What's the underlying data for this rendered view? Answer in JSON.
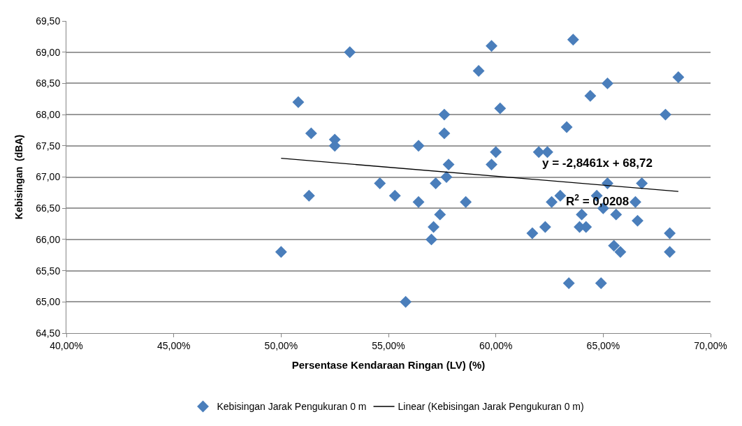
{
  "chart_data": {
    "type": "scatter",
    "xlabel": "Persentase Kendaraan Ringan (LV) (%)",
    "ylabel": "Kebisingan  (dBA)",
    "xlim": [
      0.4,
      0.7
    ],
    "xticks": [
      {
        "value": 0.4,
        "label": "40,00%"
      },
      {
        "value": 0.45,
        "label": "45,00%"
      },
      {
        "value": 0.5,
        "label": "50,00%"
      },
      {
        "value": 0.55,
        "label": "55,00%"
      },
      {
        "value": 0.6,
        "label": "60,00%"
      },
      {
        "value": 0.65,
        "label": "65,00%"
      },
      {
        "value": 0.7,
        "label": "70,00%"
      }
    ],
    "ylim": [
      64.5,
      69.5
    ],
    "yticks": [
      {
        "value": 64.5,
        "label": "64,50"
      },
      {
        "value": 65,
        "label": "65,00"
      },
      {
        "value": 65.5,
        "label": "65,50"
      },
      {
        "value": 66,
        "label": "66,00"
      },
      {
        "value": 66.5,
        "label": "66,50"
      },
      {
        "value": 67,
        "label": "67,00"
      },
      {
        "value": 67.5,
        "label": "67,50"
      },
      {
        "value": 68,
        "label": "68,00"
      },
      {
        "value": 68.5,
        "label": "68,50"
      },
      {
        "value": 69,
        "label": "69,00"
      },
      {
        "value": 69.5,
        "label": "69,50"
      }
    ],
    "grid": "y",
    "legend": "bottom",
    "marker": "diamond",
    "series": [
      {
        "name": "Kebisingan Jarak Pengukuran 0 m",
        "color": "#4a7ebb",
        "x": [
          0.5,
          0.508,
          0.514,
          0.513,
          0.525,
          0.525,
          0.532,
          0.546,
          0.553,
          0.558,
          0.564,
          0.564,
          0.57,
          0.571,
          0.574,
          0.572,
          0.577,
          0.578,
          0.576,
          0.576,
          0.586,
          0.592,
          0.598,
          0.602,
          0.6,
          0.598,
          0.636,
          0.685,
          0.652,
          0.644,
          0.679,
          0.633,
          0.62,
          0.624,
          0.652,
          0.668,
          0.63,
          0.647,
          0.626,
          0.665,
          0.65,
          0.64,
          0.656,
          0.666,
          0.623,
          0.639,
          0.642,
          0.617,
          0.681,
          0.655,
          0.658,
          0.681,
          0.634,
          0.649
        ],
        "values": [
          65.8,
          68.2,
          67.7,
          66.7,
          67.6,
          67.5,
          69.0,
          66.9,
          66.7,
          65.0,
          67.5,
          66.6,
          66.0,
          66.2,
          66.4,
          66.9,
          67.0,
          67.2,
          67.7,
          68.0,
          66.6,
          68.7,
          69.1,
          68.1,
          67.4,
          67.2,
          69.2,
          68.6,
          68.5,
          68.3,
          68.0,
          67.8,
          67.4,
          67.4,
          66.9,
          66.9,
          66.7,
          66.7,
          66.6,
          66.6,
          66.5,
          66.4,
          66.4,
          66.3,
          66.2,
          66.2,
          66.2,
          66.1,
          66.1,
          65.9,
          65.8,
          65.8,
          65.3,
          65.3
        ]
      },
      {
        "name": "Linear (Kebisingan Jarak Pengukuran 0 m)",
        "type": "line",
        "color": "#000000",
        "marker": "none",
        "line_style": "solid",
        "x": [
          0.5,
          0.685
        ],
        "values": [
          67.3,
          66.77
        ]
      }
    ],
    "annotations": [
      "y = -2,8461x + 68,72",
      "R$^{2}$ = 0,0208"
    ]
  }
}
